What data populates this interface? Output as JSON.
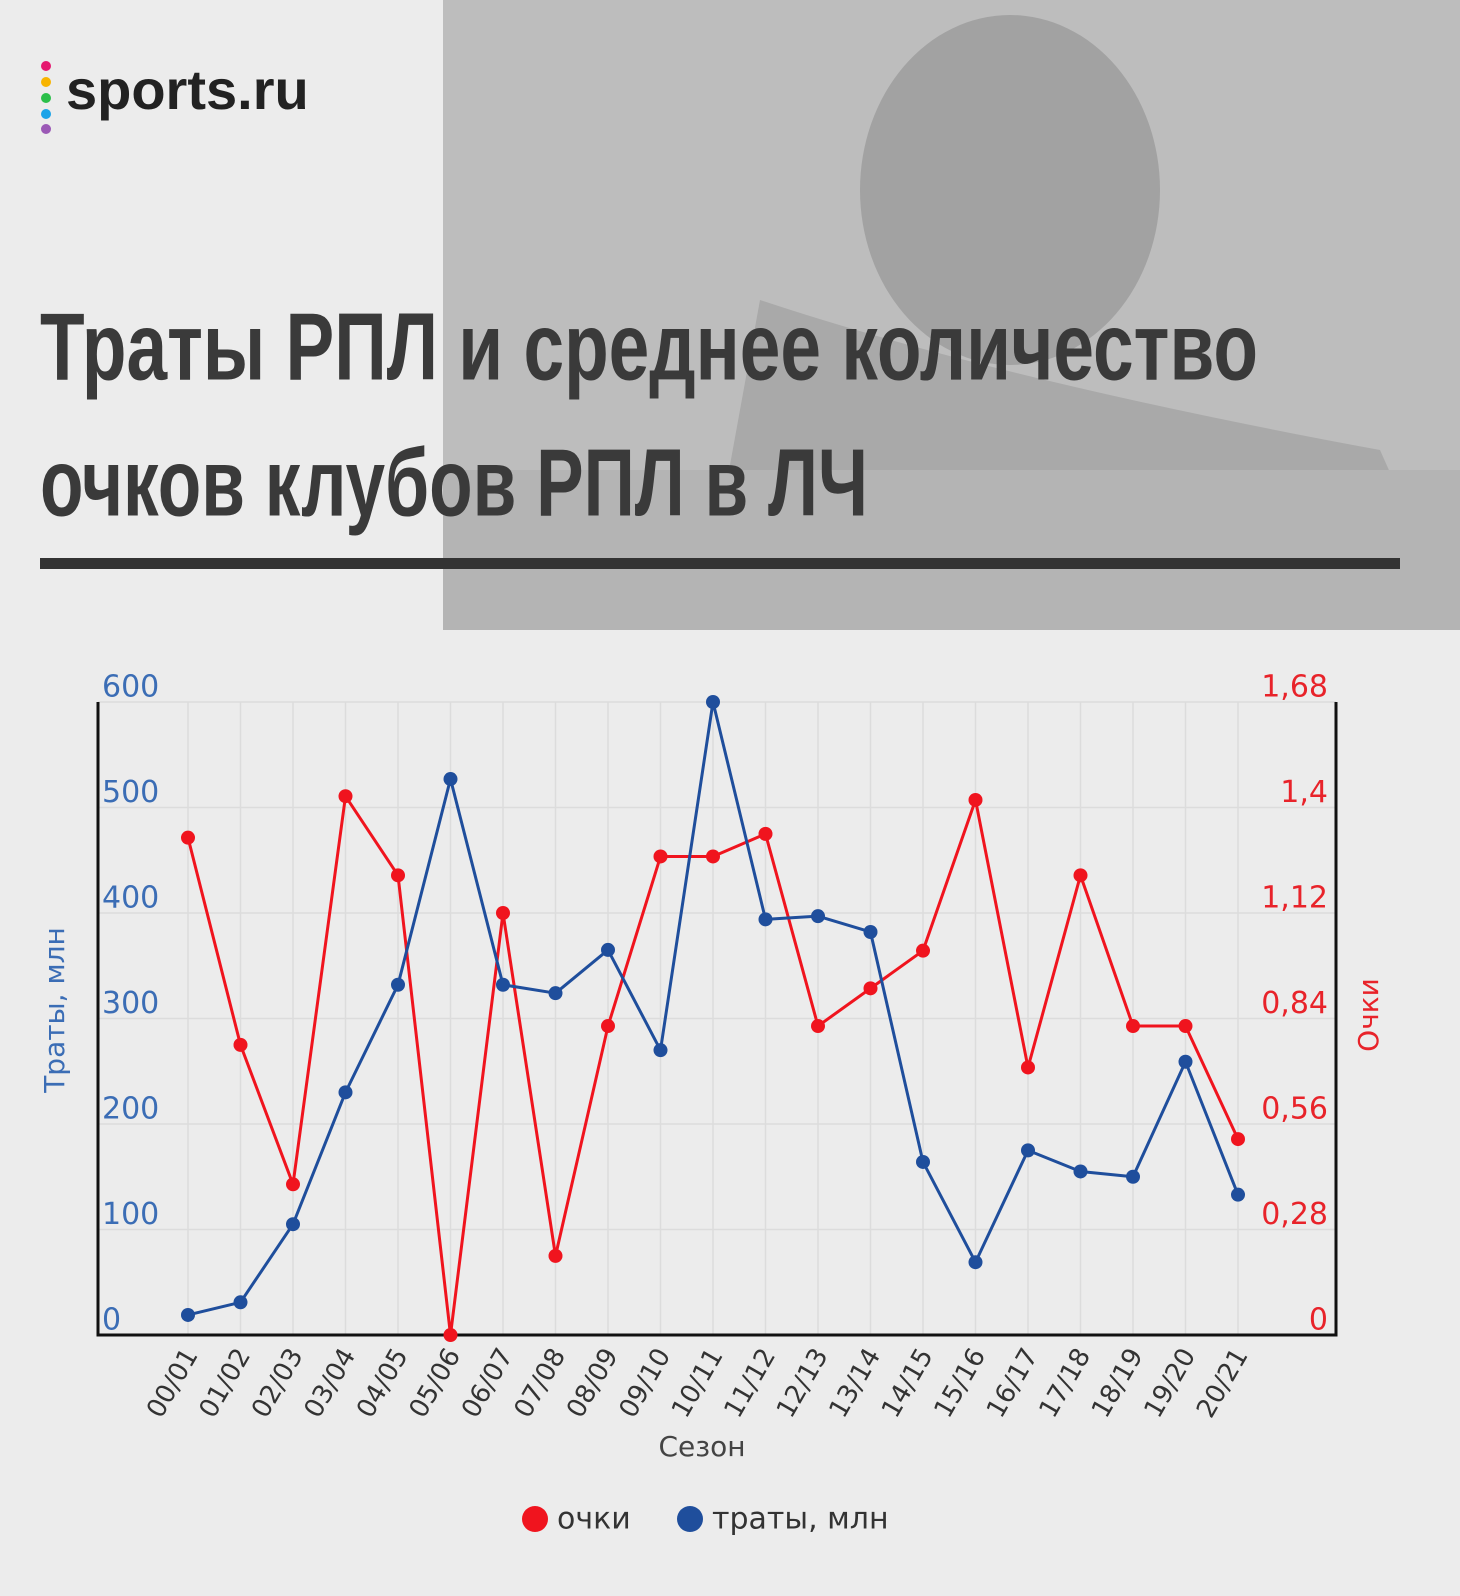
{
  "header": {
    "logo": "sports.ru"
  },
  "chart_data": {
    "type": "line",
    "title": [
      "Траты РПЛ и среднее количество",
      "очков клубов РПЛ в ЛЧ"
    ],
    "xlabel": "Сезон",
    "ylabel": "Траты, млн",
    "y2label": "Очки",
    "categories": [
      "00/01",
      "01/02",
      "02/03",
      "03/04",
      "04/05",
      "05/06",
      "06/07",
      "07/08",
      "08/09",
      "09/10",
      "10/11",
      "11/12",
      "12/13",
      "13/14",
      "14/15",
      "15/16",
      "16/17",
      "17/18",
      "18/19",
      "19/20",
      "20/21"
    ],
    "series": [
      {
        "name": "очки",
        "color": "#f0141e",
        "axis": "y2",
        "values": [
          1.32,
          0.77,
          0.4,
          1.43,
          1.22,
          0,
          1.12,
          0.21,
          0.82,
          1.27,
          1.27,
          1.33,
          0.82,
          0.92,
          1.02,
          1.42,
          0.71,
          1.22,
          0.82,
          0.82,
          0.52
        ]
      },
      {
        "name": "траты, млн",
        "color": "#1f4e9c",
        "values": [
          19,
          31,
          105,
          230,
          332,
          527,
          332,
          324,
          365,
          270,
          600,
          394,
          397,
          382,
          164,
          69,
          175,
          155,
          150,
          259,
          133
        ]
      }
    ],
    "ylim": [
      0,
      600
    ],
    "yticks": [
      0,
      100,
      200,
      300,
      400,
      500,
      600
    ],
    "y2lim": [
      0,
      1.68
    ],
    "y2ticks": [
      0,
      {
        "value": 0.28,
        "label": "0,28"
      },
      {
        "value": 0.56,
        "label": "0,56"
      },
      {
        "value": 0.84,
        "label": "0,84"
      },
      {
        "value": 1.12,
        "label": "1,12"
      },
      {
        "value": 1.4,
        "label": "1,4"
      },
      {
        "value": 1.68,
        "label": "1,68"
      }
    ],
    "grid": true
  }
}
